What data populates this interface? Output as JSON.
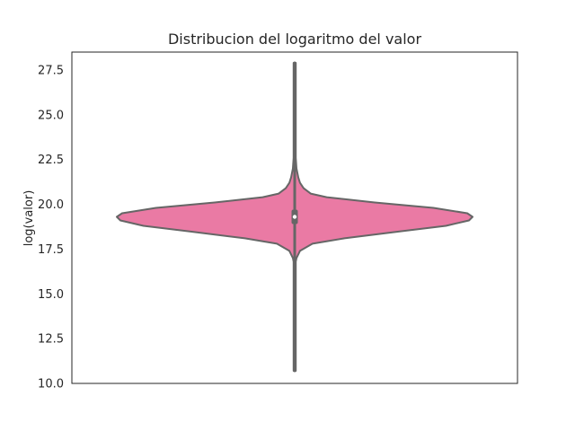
{
  "chart_data": {
    "type": "violin",
    "title": "Distribucion del logaritmo del valor",
    "xlabel": "",
    "ylabel": "log(valor)",
    "ylim": [
      10.0,
      28.5
    ],
    "yticks": [
      "10.0",
      "12.5",
      "15.0",
      "17.5",
      "20.0",
      "22.5",
      "25.0",
      "27.5"
    ],
    "grid": false,
    "colors": {
      "violin_fill": "#ea7aa4",
      "violin_stroke": "#666666",
      "box": "#666666",
      "median": "#ffffff"
    },
    "violin": {
      "min": 10.7,
      "max": 27.9,
      "q1": 18.9,
      "median": 19.3,
      "q3": 19.7,
      "whisker_low": 17.6,
      "whisker_high": 20.9,
      "density": [
        [
          10.7,
          0.0
        ],
        [
          16.8,
          0.0
        ],
        [
          17.0,
          0.01
        ],
        [
          17.4,
          0.03
        ],
        [
          17.8,
          0.1
        ],
        [
          18.1,
          0.28
        ],
        [
          18.5,
          0.6
        ],
        [
          18.8,
          0.85
        ],
        [
          19.1,
          0.98
        ],
        [
          19.3,
          1.0
        ],
        [
          19.5,
          0.97
        ],
        [
          19.8,
          0.78
        ],
        [
          20.1,
          0.45
        ],
        [
          20.4,
          0.18
        ],
        [
          20.6,
          0.09
        ],
        [
          20.9,
          0.05
        ],
        [
          21.2,
          0.03
        ],
        [
          21.5,
          0.02
        ],
        [
          22.0,
          0.01
        ],
        [
          22.6,
          0.0
        ],
        [
          27.9,
          0.0
        ]
      ]
    }
  }
}
